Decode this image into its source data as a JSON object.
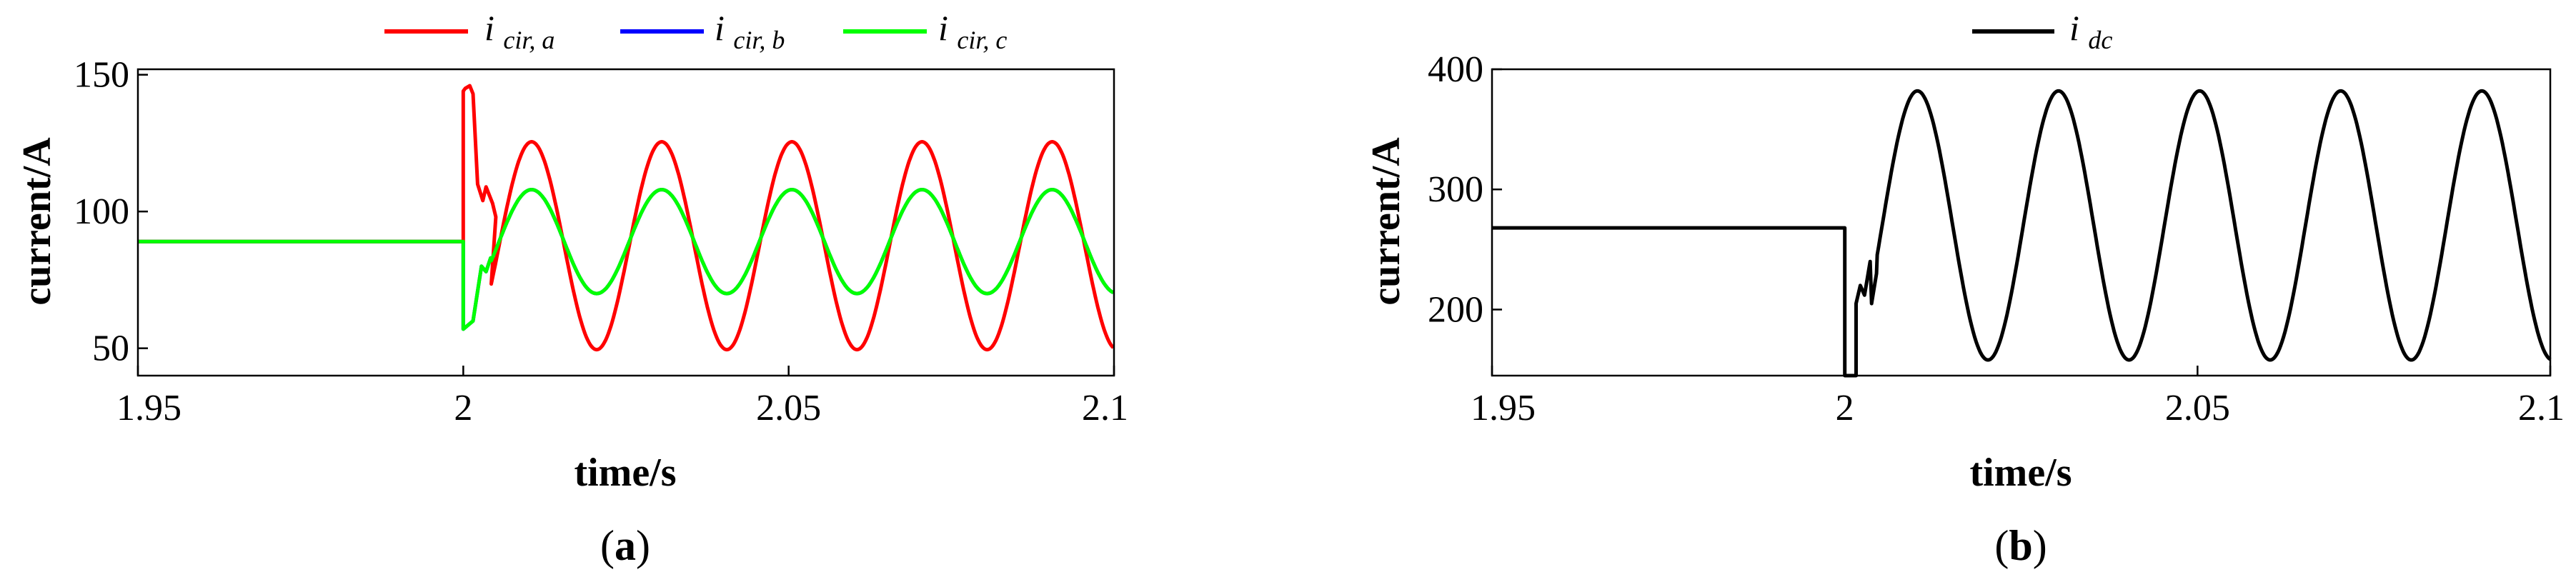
{
  "chart_data": [
    {
      "type": "line",
      "panel_label": "a",
      "xlabel": "time/s",
      "ylabel": "current/A",
      "xlim": [
        1.95,
        2.1
      ],
      "ylim": [
        40,
        152
      ],
      "xticks": [
        1.95,
        2,
        2.05,
        2.1
      ],
      "xtick_labels": [
        "1.95",
        "2",
        "2.05",
        "2.1"
      ],
      "yticks": [
        50,
        100,
        150
      ],
      "ytick_labels": [
        "50",
        "100",
        "150"
      ],
      "grid": false,
      "legend_position": "top",
      "series": [
        {
          "name_main": "i",
          "name_sub": "cir, a",
          "color": "#ff0000",
          "pre_value": 89,
          "step_time": 2.0,
          "steady_offset": 87.5,
          "steady_amplitude": 38,
          "period": 0.02,
          "phase_peak_time": 2.0105,
          "transient": [
            [
              2.0,
              89
            ],
            [
              2.0,
              144
            ],
            [
              2.0003,
              145
            ],
            [
              2.001,
              146
            ],
            [
              2.0015,
              143
            ],
            [
              2.0022,
              110
            ],
            [
              2.003,
              104
            ],
            [
              2.0035,
              109
            ],
            [
              2.0045,
              103
            ],
            [
              2.005,
              98
            ]
          ],
          "segment_break": 2.0042,
          "resume_time": 2.0043
        },
        {
          "name_main": "i",
          "name_sub": "cir, b",
          "color": "#0000ff",
          "pre_value": 89,
          "step_time": 2.0,
          "steady_offset": 89,
          "steady_amplitude": 19,
          "period": 0.02,
          "phase_peak_time": 2.0105,
          "transient": [
            [
              2.0,
              89
            ],
            [
              2.0,
              57
            ],
            [
              2.0015,
              60
            ],
            [
              2.0028,
              80
            ],
            [
              2.0035,
              78
            ],
            [
              2.0042,
              83
            ]
          ],
          "resume_time": 2.0043
        },
        {
          "name_main": "i",
          "name_sub": "cir, c",
          "color": "#00ff00",
          "pre_value": 89,
          "step_time": 2.0,
          "steady_offset": 89,
          "steady_amplitude": 19,
          "period": 0.02,
          "phase_peak_time": 2.0105,
          "transient": [
            [
              2.0,
              89
            ],
            [
              2.0,
              57
            ],
            [
              2.0015,
              60
            ],
            [
              2.0028,
              80
            ],
            [
              2.0035,
              78
            ],
            [
              2.0042,
              83
            ]
          ],
          "resume_time": 2.0043
        }
      ]
    },
    {
      "type": "line",
      "panel_label": "b",
      "xlabel": "time/s",
      "ylabel": "current/A",
      "xlim": [
        1.95,
        2.1
      ],
      "ylim": [
        145,
        400
      ],
      "xticks": [
        1.95,
        2,
        2.05,
        2.1
      ],
      "xtick_labels": [
        "1.95",
        "2",
        "2.05",
        "2.1"
      ],
      "yticks": [
        200,
        300,
        400
      ],
      "ytick_labels": [
        "200",
        "300",
        "400"
      ],
      "grid": false,
      "legend_position": "top",
      "series": [
        {
          "name_main": "i",
          "name_sub": "dc",
          "color": "#000000",
          "pre_value": 268,
          "step_time": 2.0,
          "steady_offset": 270,
          "steady_amplitude": 112,
          "period": 0.02,
          "phase_peak_time": 2.0103,
          "transient": [
            [
              2.0,
              268
            ],
            [
              2.0,
              145
            ],
            [
              2.0016,
              145
            ],
            [
              2.0016,
              205
            ],
            [
              2.0022,
              220
            ],
            [
              2.0028,
              212
            ],
            [
              2.0036,
              240
            ],
            [
              2.0038,
              205
            ],
            [
              2.0045,
              230
            ]
          ],
          "resume_time": 2.0046
        }
      ]
    }
  ]
}
